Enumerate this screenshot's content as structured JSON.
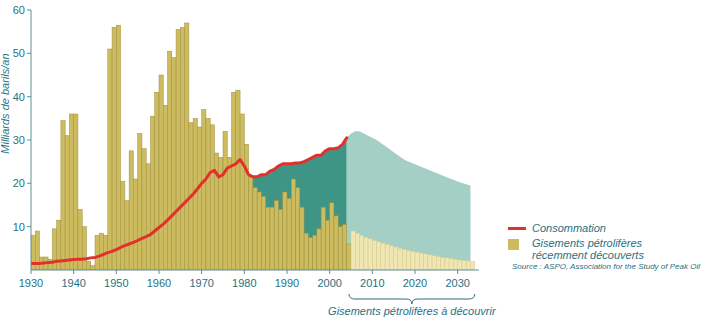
{
  "chart_data": {
    "type": "bar",
    "ylabel": "Milliards de barils/an",
    "xlabel": "Gisements pétrolifères à découvrir",
    "source": "Source : ASPO, Association for the Study of Peak Oil",
    "x": [
      1930,
      1931,
      1932,
      1933,
      1934,
      1935,
      1936,
      1937,
      1938,
      1939,
      1940,
      1941,
      1942,
      1943,
      1944,
      1945,
      1946,
      1947,
      1948,
      1949,
      1950,
      1951,
      1952,
      1953,
      1954,
      1955,
      1956,
      1957,
      1958,
      1959,
      1960,
      1961,
      1962,
      1963,
      1964,
      1965,
      1966,
      1967,
      1968,
      1969,
      1970,
      1971,
      1972,
      1973,
      1974,
      1975,
      1976,
      1977,
      1978,
      1979,
      1980,
      1981,
      1982,
      1983,
      1984,
      1985,
      1986,
      1987,
      1988,
      1989,
      1990,
      1991,
      1992,
      1993,
      1994,
      1995,
      1996,
      1997,
      1998,
      1999,
      2000,
      2001,
      2002,
      2003,
      2004,
      2005,
      2006,
      2007,
      2008,
      2009,
      2010,
      2011,
      2012,
      2013,
      2014,
      2015,
      2016,
      2017,
      2018,
      2019,
      2020,
      2021,
      2022,
      2023,
      2024,
      2025,
      2026,
      2027,
      2028,
      2029,
      2030,
      2031,
      2032,
      2033
    ],
    "series": [
      {
        "name": "Gisements pétrolifères récemment découverts",
        "type": "bar",
        "color": "#cdbb5f",
        "values": [
          8,
          9,
          3,
          3,
          2.5,
          9.5,
          11.5,
          34.5,
          31,
          36,
          36,
          14,
          10,
          2,
          1,
          8,
          8.5,
          8,
          51,
          56,
          56.5,
          20.5,
          16,
          27.5,
          21,
          31.5,
          28,
          24.5,
          35.5,
          41,
          45,
          38,
          50.5,
          49,
          55.5,
          56,
          57,
          34,
          35,
          33,
          37,
          35,
          33.5,
          27,
          26,
          32,
          26,
          41,
          41.5,
          36,
          29,
          21.5,
          19,
          18,
          17,
          14.5,
          14.5,
          16,
          14,
          18,
          16.5,
          21,
          19,
          14.5,
          8.5,
          7.5,
          8,
          9.5,
          14.5,
          11.5,
          15.5,
          12.5,
          10,
          10.5,
          6,
          null,
          null,
          null,
          null,
          null,
          null,
          null,
          null,
          null,
          null,
          null,
          null,
          null,
          null,
          null,
          null,
          null,
          null,
          null,
          null,
          null,
          null,
          null,
          null,
          null,
          null,
          null,
          null,
          null
        ]
      },
      {
        "type": "bar",
        "color": "#efe6b3",
        "values": [
          null,
          null,
          null,
          null,
          null,
          null,
          null,
          null,
          null,
          null,
          null,
          null,
          null,
          null,
          null,
          null,
          null,
          null,
          null,
          null,
          null,
          null,
          null,
          null,
          null,
          null,
          null,
          null,
          null,
          null,
          null,
          null,
          null,
          null,
          null,
          null,
          null,
          null,
          null,
          null,
          null,
          null,
          null,
          null,
          null,
          null,
          null,
          null,
          null,
          null,
          null,
          null,
          null,
          null,
          null,
          null,
          null,
          null,
          null,
          null,
          null,
          null,
          null,
          null,
          null,
          null,
          null,
          null,
          null,
          null,
          null,
          null,
          null,
          null,
          null,
          9,
          8.5,
          8,
          7.5,
          7.2,
          6.8,
          6.5,
          6.2,
          5.9,
          5.6,
          5.3,
          5,
          4.8,
          4.5,
          4.3,
          4.1,
          3.9,
          3.7,
          3.5,
          3.3,
          3.1,
          2.9,
          2.8,
          2.6,
          2.5,
          2.3,
          2.2,
          2.1,
          2
        ]
      },
      {
        "name": "Consommation",
        "type": "line",
        "color": "#e2312b",
        "values": [
          1.5,
          1.5,
          1.5,
          1.6,
          1.7,
          1.8,
          2,
          2.1,
          2.2,
          2.3,
          2.4,
          2.5,
          2.5,
          2.6,
          2.8,
          2.9,
          3.2,
          3.6,
          4,
          4.3,
          4.7,
          5.2,
          5.6,
          6,
          6.4,
          6.8,
          7.3,
          7.7,
          8.2,
          9,
          9.8,
          10.6,
          11.5,
          12.5,
          13.5,
          14.5,
          15.5,
          16.5,
          17.5,
          18.7,
          20,
          21,
          22.5,
          23,
          21.5,
          22,
          23.5,
          24,
          24.5,
          25.5,
          24,
          22,
          21.5,
          21.5,
          22,
          22,
          22.8,
          23.2,
          24,
          24.5,
          24.5,
          24.5,
          24.7,
          24.7,
          25,
          25.5,
          26,
          26.5,
          26.5,
          27.5,
          28,
          28,
          28.2,
          29,
          30.5,
          null,
          null,
          null,
          null,
          null,
          null,
          null,
          null,
          null,
          null,
          null,
          null,
          null,
          null,
          null,
          null,
          null,
          null,
          null,
          null,
          null,
          null,
          null,
          null,
          null,
          null,
          null,
          null,
          null
        ]
      },
      {
        "type": "area",
        "color": "#a3cfc4",
        "values": [
          null,
          null,
          null,
          null,
          null,
          null,
          null,
          null,
          null,
          null,
          null,
          null,
          null,
          null,
          null,
          null,
          null,
          null,
          null,
          null,
          null,
          null,
          null,
          null,
          null,
          null,
          null,
          null,
          null,
          null,
          null,
          null,
          null,
          null,
          null,
          null,
          null,
          null,
          null,
          null,
          null,
          null,
          null,
          null,
          null,
          null,
          null,
          null,
          null,
          null,
          null,
          null,
          null,
          null,
          null,
          null,
          null,
          null,
          null,
          null,
          null,
          null,
          null,
          null,
          null,
          null,
          null,
          null,
          null,
          null,
          null,
          null,
          null,
          null,
          30.5,
          31.5,
          32,
          32,
          31.5,
          31,
          30.5,
          30,
          29.3,
          28.6,
          27.9,
          27.2,
          26.5,
          25.8,
          25.2,
          24.8,
          24.4,
          24,
          23.6,
          23.2,
          22.8,
          22.4,
          22,
          21.6,
          21.2,
          20.8,
          20.4,
          20.1,
          19.8,
          19.5
        ]
      }
    ],
    "xlim": [
      1930,
      2035
    ],
    "xticks": [
      1930,
      1940,
      1950,
      1960,
      1970,
      1980,
      1990,
      2000,
      2010,
      2020,
      2030
    ],
    "ylim": [
      0,
      60
    ],
    "yticks": [
      10,
      20,
      30,
      40,
      50,
      60
    ],
    "grid": false,
    "legend": "right"
  }
}
